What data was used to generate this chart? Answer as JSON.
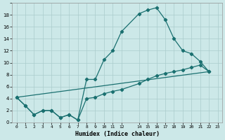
{
  "background_color": "#cce8e8",
  "grid_color": "#aacccc",
  "line_color": "#1a7070",
  "xlabel": "Humidex (Indice chaleur)",
  "xlim": [
    -0.5,
    23.5
  ],
  "ylim": [
    0,
    20
  ],
  "xticks": [
    0,
    1,
    2,
    3,
    4,
    5,
    6,
    7,
    8,
    9,
    10,
    11,
    12,
    14,
    15,
    16,
    17,
    18,
    19,
    20,
    21,
    22,
    23
  ],
  "xtick_labels": [
    "0",
    "1",
    "2",
    "3",
    "4",
    "5",
    "6",
    "7",
    "8",
    "9",
    "10",
    "11",
    "12",
    "14",
    "15",
    "16",
    "17",
    "18",
    "19",
    "20",
    "21",
    "22",
    "23"
  ],
  "yticks": [
    0,
    2,
    4,
    6,
    8,
    10,
    12,
    14,
    16,
    18,
    20
  ],
  "ytick_labels": [
    "0",
    "2",
    "4",
    "6",
    "8",
    "10",
    "12",
    "14",
    "16",
    "18",
    ""
  ],
  "line1_x": [
    0,
    1,
    2,
    3,
    4,
    5,
    6,
    7,
    8,
    9,
    10,
    11,
    12,
    14,
    15,
    16,
    17,
    18,
    19,
    20,
    21,
    22
  ],
  "line1_y": [
    4.2,
    2.8,
    1.3,
    2.0,
    2.0,
    0.8,
    1.3,
    0.4,
    7.2,
    7.2,
    10.5,
    12.0,
    15.2,
    18.2,
    18.8,
    19.2,
    17.2,
    14.0,
    12.0,
    11.5,
    10.2,
    8.5
  ],
  "line2_x": [
    0,
    1,
    2,
    3,
    4,
    5,
    6,
    7,
    8,
    9,
    10,
    11,
    12,
    14,
    15,
    16,
    17,
    18,
    19,
    20,
    21,
    22
  ],
  "line2_y": [
    4.2,
    2.8,
    1.3,
    2.0,
    2.0,
    0.8,
    1.3,
    0.4,
    4.0,
    4.2,
    4.8,
    5.2,
    5.5,
    6.5,
    7.2,
    7.8,
    8.2,
    8.5,
    8.8,
    9.2,
    9.6,
    8.5
  ],
  "line3_x": [
    0,
    22
  ],
  "line3_y": [
    4.2,
    8.5
  ]
}
